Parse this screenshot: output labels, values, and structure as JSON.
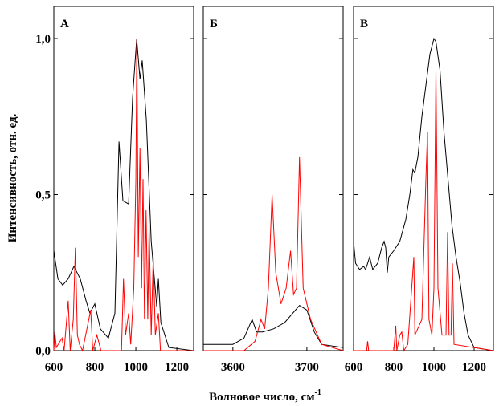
{
  "chart_data": [
    {
      "type": "line",
      "title": "А",
      "ylabel": "Интенсивность, отн. ед.",
      "xlim": [
        600,
        1282
      ],
      "xticks": [
        600,
        800,
        1000,
        1200
      ],
      "ylim": [
        0,
        1.103
      ],
      "yticks": [
        {
          "value": 0,
          "label": "0,0"
        },
        {
          "value": 0.5,
          "label": "0,5"
        },
        {
          "value": 1,
          "label": "1,0"
        }
      ],
      "series": [
        {
          "color": "#000000",
          "x": [
            600,
            620,
            643,
            670,
            698,
            729,
            757,
            776,
            800,
            827,
            866,
            898,
            918,
            937,
            965,
            984,
            1004,
            1020,
            1031,
            1051,
            1075,
            1102,
            1110,
            1122,
            1161,
            1282
          ],
          "values": [
            0.32,
            0.23,
            0.21,
            0.23,
            0.27,
            0.23,
            0.16,
            0.12,
            0.15,
            0.07,
            0.04,
            0.12,
            0.67,
            0.48,
            0.47,
            0.81,
            1.0,
            0.87,
            0.93,
            0.74,
            0.35,
            0.14,
            0.23,
            0.09,
            0.01,
            0
          ]
        },
        {
          "color": "#ff0000",
          "x": [
            600,
            605,
            612,
            640,
            650,
            670,
            680,
            695,
            705,
            715,
            725,
            740,
            780,
            790,
            810,
            830,
            930,
            940,
            950,
            965,
            975,
            990,
            1000,
            1005,
            1012,
            1020,
            1028,
            1035,
            1042,
            1050,
            1058,
            1065,
            1075,
            1085,
            1095,
            1110,
            1120,
            1282
          ],
          "values": [
            0,
            0.06,
            0.01,
            0.04,
            0,
            0.16,
            0,
            0.1,
            0.33,
            0.05,
            0.02,
            0,
            0.13,
            0,
            0.05,
            0,
            0,
            0.23,
            0.05,
            0.12,
            0.02,
            0.2,
            0.55,
            1.0,
            0.3,
            0.65,
            0.2,
            0.55,
            0.1,
            0.45,
            0.1,
            0.4,
            0.05,
            0.3,
            0.05,
            0.12,
            0,
            0
          ]
        }
      ]
    },
    {
      "type": "line",
      "title": "Б",
      "xlim": [
        3560,
        3749
      ],
      "xticks": [
        3600,
        3700
      ],
      "ylim": [
        0,
        1.103
      ],
      "series": [
        {
          "color": "#000000",
          "x": [
            3560,
            3600,
            3615,
            3626,
            3632,
            3640,
            3655,
            3670,
            3690,
            3700,
            3710,
            3720,
            3749
          ],
          "values": [
            0.02,
            0.02,
            0.04,
            0.1,
            0.06,
            0.06,
            0.07,
            0.09,
            0.145,
            0.13,
            0.06,
            0.02,
            0.01
          ]
        },
        {
          "color": "#ff0000",
          "x": [
            3560,
            3615,
            3630,
            3638,
            3643,
            3648,
            3653,
            3658,
            3665,
            3672,
            3678,
            3682,
            3686,
            3690,
            3695,
            3705,
            3720,
            3749
          ],
          "values": [
            0,
            0,
            0.03,
            0.1,
            0.07,
            0.2,
            0.5,
            0.25,
            0.15,
            0.2,
            0.32,
            0.18,
            0.2,
            0.62,
            0.2,
            0.1,
            0.02,
            0
          ]
        }
      ]
    },
    {
      "type": "line",
      "title": "В",
      "xlim": [
        600,
        1296
      ],
      "xticks": [
        600,
        800,
        1000,
        1200
      ],
      "ylim": [
        0,
        1.103
      ],
      "series": [
        {
          "color": "#000000",
          "x": [
            600,
            610,
            630,
            650,
            660,
            680,
            695,
            720,
            740,
            752,
            760,
            768,
            775,
            800,
            830,
            860,
            880,
            895,
            905,
            920,
            940,
            960,
            980,
            1000,
            1010,
            1030,
            1050,
            1070,
            1090,
            1110,
            1130,
            1150,
            1170,
            1200,
            1296
          ],
          "values": [
            0.35,
            0.28,
            0.26,
            0.27,
            0.26,
            0.3,
            0.26,
            0.28,
            0.33,
            0.35,
            0.33,
            0.25,
            0.3,
            0.32,
            0.35,
            0.42,
            0.5,
            0.58,
            0.57,
            0.62,
            0.75,
            0.85,
            0.95,
            1.0,
            0.99,
            0.9,
            0.7,
            0.55,
            0.4,
            0.3,
            0.22,
            0.12,
            0.05,
            0.01,
            0
          ]
        },
        {
          "color": "#ff0000",
          "x": [
            600,
            665,
            670,
            675,
            800,
            810,
            815,
            830,
            840,
            850,
            870,
            900,
            905,
            940,
            960,
            968,
            975,
            990,
            1000,
            1010,
            1020,
            1040,
            1060,
            1068,
            1075,
            1085,
            1092,
            1100,
            1296
          ],
          "values": [
            0,
            0,
            0.03,
            0,
            0,
            0.08,
            0,
            0.05,
            0.06,
            0,
            0.02,
            0.3,
            0.05,
            0.1,
            0.55,
            0.7,
            0.1,
            0.05,
            0.2,
            0.9,
            0.2,
            0.05,
            0.05,
            0.38,
            0.05,
            0.05,
            0.28,
            0.02,
            0
          ]
        }
      ]
    }
  ],
  "x_label": "Волновое число, см",
  "x_label_superscript": "-1"
}
